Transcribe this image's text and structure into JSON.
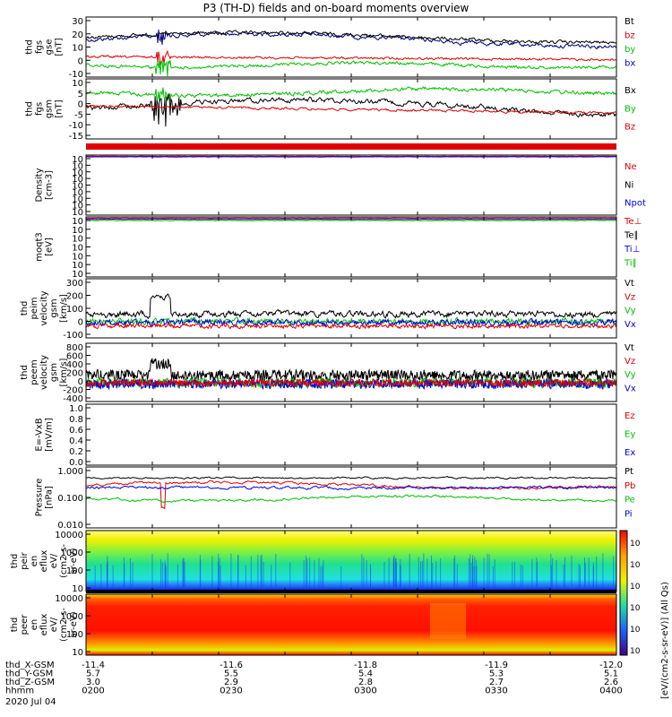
{
  "title": "P3 (TH-D) fields and on-board moments overview",
  "colors": {
    "black": "#000000",
    "red": "#e00000",
    "green": "#00c000",
    "blue": "#0000e0",
    "navy": "#000080"
  },
  "chart_data": {
    "type": "line",
    "time_range": [
      "2020-07-04 02:00",
      "2020-07-04 04:00"
    ],
    "panels": [
      {
        "ylabel": [
          "thd",
          "fgs",
          "gse",
          "[nT]"
        ],
        "yticks": [
          "30",
          "20",
          "10",
          "0",
          "-10"
        ],
        "legend": [
          {
            "label": "Bt",
            "color": "#000000"
          },
          {
            "label": "bz",
            "color": "#e00000"
          },
          {
            "label": "by",
            "color": "#00c000"
          },
          {
            "label": "bx",
            "color": "#0000e0"
          }
        ]
      },
      {
        "ylabel": [
          "thd",
          "fgs",
          "gsm",
          "[nT]"
        ],
        "yticks": [
          "10",
          "5",
          "0",
          "-5",
          "-10",
          "-15"
        ],
        "legend": [
          {
            "label": "Bx",
            "color": "#000000"
          },
          {
            "label": "By",
            "color": "#00c000"
          },
          {
            "label": "Bz",
            "color": "#e00000"
          }
        ]
      },
      {
        "ylabel": [
          "Density",
          "[cm-3]"
        ],
        "yticks": [
          "10",
          "10",
          "10",
          "10",
          "10",
          "10",
          "10",
          "10",
          "10"
        ],
        "legend": [
          {
            "label": "Ne",
            "color": "#e00000"
          },
          {
            "label": "Ni",
            "color": "#000000"
          },
          {
            "label": "Npot",
            "color": "#0000e0"
          }
        ]
      },
      {
        "ylabel": [
          "moqt3",
          "[eV]"
        ],
        "yticks": [
          "10",
          "10",
          "10",
          "10",
          "10",
          "10",
          "10"
        ],
        "legend": [
          {
            "label": "Te⊥",
            "color": "#e00000"
          },
          {
            "label": "Te∥",
            "color": "#000000"
          },
          {
            "label": "Ti⊥",
            "color": "#0000e0"
          },
          {
            "label": "Ti∥",
            "color": "#00c000"
          }
        ]
      },
      {
        "ylabel": [
          "thd",
          "peim",
          "velocity",
          "gsm",
          "[km/s]"
        ],
        "yticks": [
          "300",
          "200",
          "100",
          "0",
          "-100"
        ],
        "legend": [
          {
            "label": "Vt",
            "color": "#000000"
          },
          {
            "label": "Vz",
            "color": "#e00000"
          },
          {
            "label": "Vy",
            "color": "#00c000"
          },
          {
            "label": "Vx",
            "color": "#0000e0"
          }
        ]
      },
      {
        "ylabel": [
          "thd",
          "peem",
          "velocity",
          "gsm",
          "[km/s]"
        ],
        "yticks": [
          "800",
          "600",
          "400",
          "200",
          "0",
          "-200",
          "-400"
        ],
        "legend": [
          {
            "label": "Vt",
            "color": "#000000"
          },
          {
            "label": "Vz",
            "color": "#e00000"
          },
          {
            "label": "Vy",
            "color": "#00c000"
          },
          {
            "label": "Vx",
            "color": "#0000e0"
          }
        ]
      },
      {
        "ylabel": [
          "E=-VxB",
          "[mV/m]"
        ],
        "yticks": [
          "1.0",
          "0.8",
          "0.6",
          "0.4",
          "0.2",
          "0.0"
        ],
        "legend": [
          {
            "label": "Ez",
            "color": "#e00000"
          },
          {
            "label": "Ey",
            "color": "#00c000"
          },
          {
            "label": "Ex",
            "color": "#0000e0"
          }
        ]
      },
      {
        "ylabel": [
          "Pressure",
          "[nPa]"
        ],
        "yticks": [
          "1.000",
          "0.100",
          "0.010"
        ],
        "legend": [
          {
            "label": "Pt",
            "color": "#000000"
          },
          {
            "label": "Pb",
            "color": "#e00000"
          },
          {
            "label": "Pe",
            "color": "#00c000"
          },
          {
            "label": "Pi",
            "color": "#0000e0"
          }
        ]
      },
      {
        "ylabel": [
          "thd",
          "peir",
          "en",
          "eflux",
          "eV/",
          "(cm2-s-",
          "sr-eV)"
        ],
        "yticks": [
          "10000",
          "1000",
          "100",
          "10"
        ]
      },
      {
        "ylabel": [
          "thd",
          "peer",
          "en",
          "eflux",
          "eV/",
          "(cm2-s-",
          "sr-eV)"
        ],
        "yticks": [
          "10000",
          "1000",
          "100",
          "10"
        ]
      }
    ],
    "colorbar": {
      "ticks": [
        "10",
        "10",
        "10",
        "10",
        "10",
        "10"
      ],
      "label": "[eV/(cm2-s-sr-eV)] (All Qs)"
    },
    "xaxis": {
      "rows": [
        {
          "label": "thd_X-GSM",
          "values": [
            "-11.4",
            "-11.6",
            "-11.8",
            "-11.9",
            "-12.0"
          ]
        },
        {
          "label": "thd_Y-GSM",
          "values": [
            "5.7",
            "5.5",
            "5.4",
            "5.3",
            "5.1"
          ]
        },
        {
          "label": "thd_Z-GSM",
          "values": [
            "3.0",
            "2.9",
            "2.8",
            "2.7",
            "2.6"
          ]
        },
        {
          "label": "hhmm",
          "values": [
            "0200",
            "0230",
            "0300",
            "0330",
            "0400"
          ]
        }
      ],
      "date": "2020 Jul 04"
    }
  }
}
